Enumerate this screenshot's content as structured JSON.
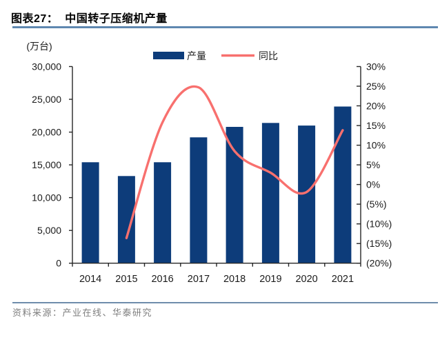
{
  "header": {
    "title": "图表27：  中国转子压缩机产量"
  },
  "footer": {
    "source": "资料来源：产业在线、华泰研究"
  },
  "colors": {
    "bar": "#0d3c7a",
    "line": "#f8706e",
    "title_rule": "#5e87b0",
    "footer_rule": "#6e8cab",
    "source_text": "#7f7f7f",
    "axis_line": "#262626",
    "axis_text": "#1a1a1a"
  },
  "chart_data": {
    "type": "combo-bar-line",
    "title": "中国转子压缩机产量",
    "categories": [
      "2014",
      "2015",
      "2016",
      "2017",
      "2018",
      "2019",
      "2020",
      "2021"
    ],
    "series": [
      {
        "name": "产量",
        "type": "bar",
        "axis": "left",
        "color": "#0d3c7a",
        "values": [
          15400,
          13300,
          15400,
          19200,
          20800,
          21400,
          21000,
          23900
        ]
      },
      {
        "name": "同比",
        "type": "line",
        "axis": "right",
        "color": "#f8706e",
        "values": [
          null,
          -13.6,
          15.8,
          24.7,
          8.5,
          3.0,
          -1.9,
          13.8
        ]
      }
    ],
    "left_axis": {
      "unit": "(万台)",
      "min": 0,
      "max": 30000,
      "step": 5000,
      "tick_labels": [
        "0",
        "5,000",
        "10,000",
        "15,000",
        "20,000",
        "25,000",
        "30,000"
      ]
    },
    "right_axis": {
      "min": -20,
      "max": 30,
      "step": 5,
      "tick_labels": [
        "(20%)",
        "(15%)",
        "(10%)",
        "(5%)",
        "0%",
        "5%",
        "10%",
        "15%",
        "20%",
        "25%",
        "30%"
      ]
    },
    "legend": {
      "position": "top",
      "items": [
        "产量",
        "同比"
      ]
    },
    "grid": false
  }
}
